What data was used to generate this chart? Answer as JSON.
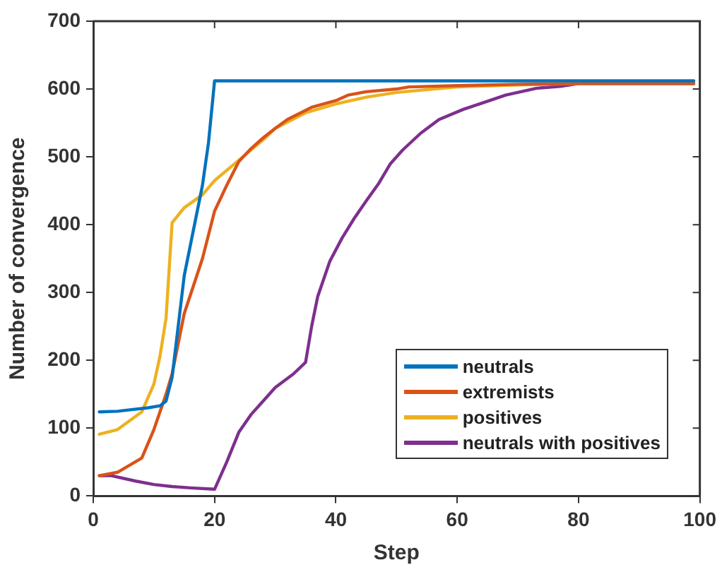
{
  "chart_data": {
    "type": "line",
    "xlabel": "Step",
    "ylabel": "Number of convergence",
    "xlim": [
      0,
      100
    ],
    "xticks": [
      0,
      20,
      40,
      60,
      80,
      100
    ],
    "ylim": [
      0,
      700
    ],
    "yticks": [
      0,
      100,
      200,
      300,
      400,
      500,
      600,
      700
    ],
    "grid": false,
    "legend": "bottom right",
    "marker": "none",
    "line_style": "solid",
    "series": [
      {
        "name": "neutrals",
        "color": "#0072bd",
        "x": [
          1,
          4,
          6,
          9,
          11,
          12,
          13,
          15,
          18,
          19,
          20,
          99
        ],
        "values": [
          124,
          125,
          127,
          130,
          133,
          140,
          175,
          325,
          458,
          521,
          612,
          612
        ]
      },
      {
        "name": "extremists",
        "color": "#d95319",
        "x": [
          1,
          4,
          8,
          10,
          12,
          13,
          15,
          18,
          20,
          22,
          24,
          26,
          28,
          30,
          32,
          36,
          40,
          42,
          45,
          50,
          52,
          60,
          70,
          80,
          99
        ],
        "values": [
          30,
          35,
          56,
          98,
          150,
          180,
          269,
          350,
          420,
          458,
          493,
          512,
          528,
          542,
          555,
          573,
          583,
          591,
          596,
          600,
          603,
          605,
          607,
          608,
          608
        ]
      },
      {
        "name": "positives",
        "color": "#edb120",
        "x": [
          1,
          4,
          8,
          10,
          11,
          12,
          13,
          15,
          18,
          20,
          24,
          28,
          30,
          35,
          40,
          45,
          50,
          60,
          70,
          80,
          99
        ],
        "values": [
          91,
          98,
          124,
          165,
          206,
          262,
          403,
          425,
          444,
          465,
          495,
          525,
          542,
          565,
          578,
          588,
          595,
          603,
          606,
          608,
          610
        ]
      },
      {
        "name": "neutrals with positives",
        "color": "#7e2f8e",
        "x": [
          1,
          3,
          7,
          10,
          13,
          16,
          20,
          22,
          24,
          26,
          28,
          30,
          33,
          35,
          36,
          37,
          39,
          41,
          43,
          45,
          47,
          49,
          51,
          54,
          57,
          61,
          65,
          68,
          73,
          77,
          80,
          83,
          99
        ],
        "values": [
          30,
          30,
          22,
          17,
          14,
          12,
          10,
          50,
          94,
          120,
          140,
          160,
          180,
          197,
          250,
          294,
          346,
          380,
          409,
          435,
          460,
          490,
          510,
          535,
          555,
          570,
          582,
          591,
          601,
          604,
          608,
          608,
          608
        ]
      }
    ]
  }
}
